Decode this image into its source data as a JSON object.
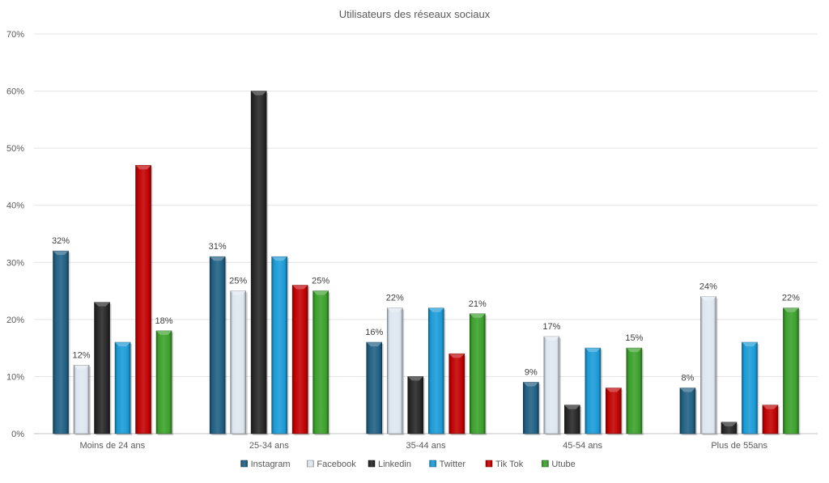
{
  "chart_data": {
    "type": "bar",
    "title": "Utilisateurs des réseaux sociaux",
    "categories": [
      "Moins de 24 ans",
      "25-34 ans",
      "35-44 ans",
      "45-54 ans",
      "Plus de 55ans"
    ],
    "ylim": [
      0,
      70
    ],
    "yticks": [
      0,
      10,
      20,
      30,
      40,
      50,
      60,
      70
    ],
    "ytick_labels": [
      "0%",
      "10%",
      "20%",
      "30%",
      "40%",
      "50%",
      "60%",
      "70%"
    ],
    "grid": true,
    "legend_position": "bottom",
    "series": [
      {
        "name": "Instagram",
        "color": "#1f5f82",
        "values": [
          32,
          31,
          16,
          9,
          8
        ],
        "labels": [
          "32%",
          "31%",
          "16%",
          "9%",
          "8%"
        ]
      },
      {
        "name": "Facebook",
        "color": "#dde6ef",
        "values": [
          12,
          25,
          22,
          17,
          24
        ],
        "labels": [
          "12%",
          "25%",
          "22%",
          "17%",
          "24%"
        ]
      },
      {
        "name": "Linkedin",
        "color": "#262626",
        "values": [
          23,
          60,
          10,
          5,
          2
        ],
        "labels": [
          "",
          "",
          "",
          "",
          ""
        ]
      },
      {
        "name": "Twitter",
        "color": "#1a9ad6",
        "values": [
          16,
          31,
          22,
          15,
          16
        ],
        "labels": [
          "",
          "",
          "",
          "",
          ""
        ]
      },
      {
        "name": "Tik Tok",
        "color": "#c00000",
        "values": [
          47,
          26,
          14,
          8,
          5
        ],
        "labels": [
          "",
          "",
          "",
          "",
          ""
        ]
      },
      {
        "name": "Utube",
        "color": "#3aa02a",
        "values": [
          18,
          25,
          21,
          15,
          22
        ],
        "labels": [
          "18%",
          "25%",
          "21%",
          "15%",
          "22%"
        ]
      }
    ]
  }
}
